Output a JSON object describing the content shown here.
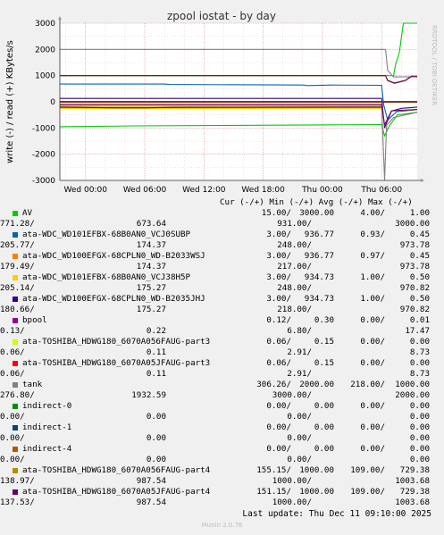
{
  "chart_data": {
    "type": "line",
    "title": "zpool iostat - by day",
    "ylabel": "write (-) / read (+) KBytes/s",
    "watermark": "RRDTOOL / TOBI OETIKER",
    "ylim": [
      -3000,
      3000
    ],
    "y_ticks": [
      "-3000",
      "-2000",
      "-1000",
      "0",
      "1000",
      "2000",
      "3000"
    ],
    "x_ticks": [
      "Wed 00:00",
      "Wed 06:00",
      "Wed 12:00",
      "Wed 18:00",
      "Thu 00:00",
      "Thu 06:00"
    ],
    "x_tick_hours": [
      0,
      6,
      12,
      18,
      24,
      30
    ],
    "x_range_hours": [
      -2.6,
      33.6
    ],
    "grid": true,
    "series": [
      {
        "name": "AV",
        "color": "#00cc00",
        "read": [
          [
            -2.6,
            1000
          ],
          [
            31.2,
            1000
          ],
          [
            31.4,
            1400
          ],
          [
            31.8,
            1900
          ],
          [
            32.2,
            3000
          ],
          [
            33.6,
            3000
          ]
        ],
        "write": [
          [
            -2.6,
            -950
          ],
          [
            5,
            -920
          ],
          [
            15,
            -900
          ],
          [
            25,
            -880
          ],
          [
            30,
            -870
          ],
          [
            30.3,
            -1300
          ],
          [
            30.8,
            -900
          ],
          [
            31.6,
            -500
          ],
          [
            33.6,
            -400
          ]
        ]
      },
      {
        "name": "ata-WDC_WD101EFBX-68B0AN0_VCJ0SUBP",
        "color": "#0066b3",
        "read": [
          [
            -2.6,
            680
          ],
          [
            8,
            680
          ],
          [
            8.5,
            660
          ],
          [
            22,
            640
          ],
          [
            22.5,
            620
          ],
          [
            25,
            640
          ],
          [
            30,
            630
          ],
          [
            30.2,
            -100
          ],
          [
            30.6,
            -700
          ],
          [
            31.5,
            -380
          ],
          [
            33.6,
            -300
          ]
        ],
        "write": [
          [
            -2.6,
            -210
          ],
          [
            3,
            -230
          ],
          [
            8,
            -230
          ],
          [
            12,
            -220
          ],
          [
            20,
            -220
          ],
          [
            30,
            -210
          ]
        ]
      },
      {
        "name": "ata-WDC_WD100EFGX-68CPLN0_WD-B2033WSJ",
        "color": "#ff8000",
        "read": [
          [
            -2.6,
            -160
          ],
          [
            30,
            -160
          ]
        ],
        "write": [
          [
            -2.6,
            -240
          ],
          [
            2,
            -240
          ],
          [
            3,
            -250
          ],
          [
            6,
            -250
          ],
          [
            7,
            -240
          ],
          [
            30,
            -240
          ]
        ]
      },
      {
        "name": "ata-WDC_WD101EFBX-68B0AN0_VCJ38H5P",
        "color": "#ffcc00",
        "read": [
          [
            -2.6,
            -180
          ],
          [
            30,
            -180
          ]
        ],
        "write": [
          [
            -2.6,
            -250
          ],
          [
            3,
            -260
          ],
          [
            6,
            -260
          ],
          [
            30,
            -250
          ]
        ]
      },
      {
        "name": "ata-WDC_WD100EFGX-68CPLN0_WD-B2035JHJ",
        "color": "#330099",
        "read": [
          [
            -2.6,
            130
          ],
          [
            30,
            130
          ],
          [
            30.3,
            -1000
          ],
          [
            31,
            -350
          ],
          [
            32,
            -250
          ],
          [
            33.6,
            -200
          ]
        ],
        "write": [
          [
            -2.6,
            -200
          ],
          [
            3,
            -230
          ],
          [
            6,
            -230
          ],
          [
            9,
            -210
          ],
          [
            30,
            -200
          ]
        ]
      },
      {
        "name": "bpool",
        "color": "#990099",
        "read": [
          [
            -2.6,
            10
          ],
          [
            33.6,
            10
          ]
        ],
        "write": [
          [
            -2.6,
            -10
          ],
          [
            33.6,
            -10
          ]
        ]
      },
      {
        "name": "ata-TOSHIBA_HDWG180_6070A056FAUG-part3",
        "color": "#ccff00",
        "read": [
          [
            -2.6,
            8
          ],
          [
            33.6,
            8
          ]
        ],
        "write": [
          [
            -2.6,
            -8
          ],
          [
            33.6,
            -8
          ]
        ]
      },
      {
        "name": "ata-TOSHIBA_HDWG180_6070A05JFAUG-part3",
        "color": "#ff0000",
        "read": [
          [
            -2.6,
            6
          ],
          [
            33.6,
            6
          ]
        ],
        "write": [
          [
            -2.6,
            -6
          ],
          [
            33.6,
            -6
          ]
        ]
      },
      {
        "name": "tank",
        "color": "#808080",
        "read": [
          [
            -2.6,
            2000
          ],
          [
            30.4,
            2000
          ],
          [
            30.6,
            1200
          ],
          [
            31.2,
            950
          ],
          [
            32.5,
            950
          ],
          [
            33.6,
            950
          ]
        ],
        "write": [
          [
            -2.6,
            -100
          ],
          [
            30,
            -100
          ],
          [
            30.3,
            -3000
          ],
          [
            30.5,
            -900
          ],
          [
            31.2,
            -600
          ],
          [
            33.6,
            -400
          ]
        ]
      },
      {
        "name": "indirect-0",
        "color": "#008f00",
        "read": [
          [
            -2.6,
            0
          ],
          [
            33.6,
            0
          ]
        ],
        "write": [
          [
            -2.6,
            0
          ],
          [
            33.6,
            0
          ]
        ]
      },
      {
        "name": "indirect-1",
        "color": "#00487d",
        "read": [
          [
            -2.6,
            0
          ],
          [
            33.6,
            0
          ]
        ],
        "write": [
          [
            -2.6,
            0
          ],
          [
            33.6,
            0
          ]
        ]
      },
      {
        "name": "indirect-4",
        "color": "#b35a00",
        "read": [
          [
            -2.6,
            0
          ],
          [
            33.6,
            0
          ]
        ],
        "write": [
          [
            -2.6,
            0
          ],
          [
            33.6,
            0
          ]
        ]
      },
      {
        "name": "ata-TOSHIBA_HDWG180_6070A056FAUG-part4",
        "color": "#b38f00",
        "read": [
          [
            -2.6,
            1000
          ],
          [
            30.4,
            1000
          ],
          [
            30.6,
            800
          ],
          [
            31.3,
            700
          ],
          [
            32.4,
            800
          ],
          [
            33,
            950
          ],
          [
            33.6,
            950
          ]
        ],
        "write": [
          [
            -2.6,
            -110
          ],
          [
            30,
            -110
          ],
          [
            30.3,
            -900
          ],
          [
            31,
            -350
          ],
          [
            33.6,
            -300
          ]
        ]
      },
      {
        "name": "ata-TOSHIBA_HDWG180_6070A05JFAUG-part4",
        "color": "#6b006b",
        "read": [
          [
            -2.6,
            1000
          ],
          [
            30.4,
            1000
          ],
          [
            30.6,
            820
          ],
          [
            31.3,
            720
          ],
          [
            32.4,
            820
          ],
          [
            33,
            980
          ],
          [
            33.6,
            980
          ]
        ],
        "write": [
          [
            -2.6,
            -100
          ],
          [
            30,
            -100
          ],
          [
            30.3,
            -880
          ],
          [
            31,
            -340
          ],
          [
            33.6,
            -290
          ]
        ]
      }
    ]
  },
  "legend": {
    "header": "Cur (-/+) Min (-/+) Avg (-/+) Max (-/+)",
    "rows": [
      {
        "name": "AV",
        "color": "#00cc00",
        "cur": "15.00/",
        "min": "3000.00",
        "avg": "4.00/",
        "max": "1.00",
        "read_cur": "771.28/",
        "read_avg": "673.64",
        "read_min": "931.00/",
        "read_max": "3000.00"
      },
      {
        "name": "ata-WDC_WD101EFBX-68B0AN0_VCJ0SUBP",
        "color": "#0066b3",
        "cur": "3.00/",
        "min": "936.77",
        "avg": "0.93/",
        "max": "0.45",
        "read_cur": "205.77/",
        "read_avg": "174.37",
        "read_min": "248.00/",
        "read_max": "973.78"
      },
      {
        "name": "ata-WDC_WD100EFGX-68CPLN0_WD-B2033WSJ",
        "color": "#ff8000",
        "cur": "3.00/",
        "min": "936.77",
        "avg": "0.97/",
        "max": "0.45",
        "read_cur": "179.49/",
        "read_avg": "174.37",
        "read_min": "217.00/",
        "read_max": "973.78"
      },
      {
        "name": "ata-WDC_WD101EFBX-68B0AN0_VCJ38H5P",
        "color": "#ffcc00",
        "cur": "3.00/",
        "min": "934.73",
        "avg": "1.00/",
        "max": "0.50",
        "read_cur": "205.14/",
        "read_avg": "175.27",
        "read_min": "248.00/",
        "read_max": "970.82"
      },
      {
        "name": "ata-WDC_WD100EFGX-68CPLN0_WD-B2035JHJ",
        "color": "#330099",
        "cur": "3.00/",
        "min": "934.73",
        "avg": "1.00/",
        "max": "0.50",
        "read_cur": "180.66/",
        "read_avg": "175.27",
        "read_min": "218.00/",
        "read_max": "970.82"
      },
      {
        "name": "bpool",
        "color": "#990099",
        "cur": "0.12/",
        "min": "0.30",
        "avg": "0.00/",
        "max": "0.01",
        "read_cur": "0.13/",
        "read_avg": "0.22",
        "read_min": "6.80/",
        "read_max": "17.47"
      },
      {
        "name": "ata-TOSHIBA_HDWG180_6070A056FAUG-part3",
        "color": "#ccff00",
        "cur": "0.06/",
        "min": "0.15",
        "avg": "0.00/",
        "max": "0.00",
        "read_cur": "0.06/",
        "read_avg": "0.11",
        "read_min": "2.91/",
        "read_max": "8.73"
      },
      {
        "name": "ata-TOSHIBA_HDWG180_6070A05JFAUG-part3",
        "color": "#ff0000",
        "cur": "0.06/",
        "min": "0.15",
        "avg": "0.00/",
        "max": "0.00",
        "read_cur": "0.06/",
        "read_avg": "0.11",
        "read_min": "2.91/",
        "read_max": "8.73"
      },
      {
        "name": "tank",
        "color": "#808080",
        "cur": "306.26/",
        "min": "2000.00",
        "avg": "218.00/",
        "max": "1000.00",
        "read_cur": "276.80/",
        "read_avg": "1932.59",
        "read_min": "3000.00/",
        "read_max": "2000.00"
      },
      {
        "name": "indirect-0",
        "color": "#008f00",
        "cur": "0.00/",
        "min": "0.00",
        "avg": "0.00/",
        "max": "0.00",
        "read_cur": "0.00/",
        "read_avg": "0.00",
        "read_min": "0.00/",
        "read_max": "0.00"
      },
      {
        "name": "indirect-1",
        "color": "#00487d",
        "cur": "0.00/",
        "min": "0.00",
        "avg": "0.00/",
        "max": "0.00",
        "read_cur": "0.00/",
        "read_avg": "0.00",
        "read_min": "0.00/",
        "read_max": "0.00"
      },
      {
        "name": "indirect-4",
        "color": "#b35a00",
        "cur": "0.00/",
        "min": "0.00",
        "avg": "0.00/",
        "max": "0.00",
        "read_cur": "0.00/",
        "read_avg": "0.00",
        "read_min": "0.00/",
        "read_max": "0.00"
      },
      {
        "name": "ata-TOSHIBA_HDWG180_6070A056FAUG-part4",
        "color": "#b38f00",
        "cur": "155.15/",
        "min": "1000.00",
        "avg": "109.00/",
        "max": "729.38",
        "read_cur": "138.97/",
        "read_avg": "987.54",
        "read_min": "1000.00/",
        "read_max": "1003.68"
      },
      {
        "name": "ata-TOSHIBA_HDWG180_6070A05JFAUG-part4",
        "color": "#6b006b",
        "cur": "151.15/",
        "min": "1000.00",
        "avg": "109.00/",
        "max": "729.38",
        "read_cur": "137.53/",
        "read_avg": "987.54",
        "read_min": "1000.00/",
        "read_max": "1003.68"
      }
    ]
  },
  "last_update": "Last update: Thu Dec 11 09:10:00 2025",
  "footer": "Munin 2.0.76"
}
